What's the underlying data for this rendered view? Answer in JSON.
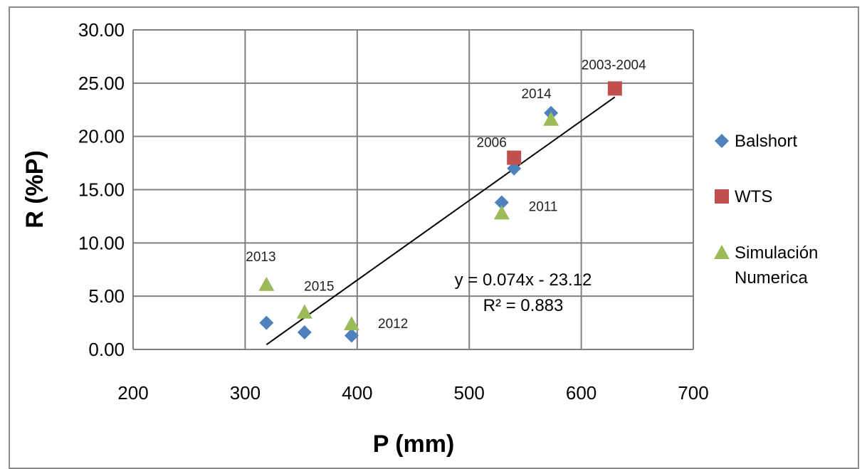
{
  "chart_data": {
    "type": "scatter",
    "xlabel": "P (mm)",
    "ylabel": "R (%P)",
    "xlim": [
      200,
      700
    ],
    "ylim": [
      0,
      30
    ],
    "x_ticks": [
      "200",
      "300",
      "400",
      "500",
      "600",
      "700"
    ],
    "y_ticks": [
      "0.00",
      "5.00",
      "10.00",
      "15.00",
      "20.00",
      "25.00",
      "30.00"
    ],
    "grid": true,
    "legend_position": "right",
    "series": [
      {
        "name": "Balshort",
        "marker": "diamond",
        "color": "#4f81bd",
        "points": [
          {
            "x": 319,
            "y": 2.5
          },
          {
            "x": 353,
            "y": 1.6
          },
          {
            "x": 395,
            "y": 1.3
          },
          {
            "x": 529,
            "y": 13.8
          },
          {
            "x": 540,
            "y": 17.0
          },
          {
            "x": 573,
            "y": 22.2
          }
        ]
      },
      {
        "name": "WTS",
        "marker": "square",
        "color": "#c0504d",
        "points": [
          {
            "x": 540,
            "y": 18.0
          },
          {
            "x": 630,
            "y": 24.5
          }
        ]
      },
      {
        "name": "Simulación Numerica",
        "legend_lines": [
          "Simulación",
          "Numerica"
        ],
        "marker": "triangle",
        "color": "#9bbb59",
        "points": [
          {
            "x": 319,
            "y": 6.1
          },
          {
            "x": 353,
            "y": 3.5
          },
          {
            "x": 395,
            "y": 2.4
          },
          {
            "x": 529,
            "y": 12.8
          },
          {
            "x": 573,
            "y": 21.6
          }
        ]
      }
    ],
    "trendline": {
      "x": [
        319,
        630
      ],
      "y": [
        0.45,
        23.7
      ],
      "color": "#000000",
      "equation": "y = 0.074x - 23.12",
      "r2": "R² = 0.883"
    },
    "annotations": [
      {
        "text": "2013",
        "x": 314,
        "y": 8.3
      },
      {
        "text": "2015",
        "x": 366,
        "y": 5.5
      },
      {
        "text": "2012",
        "x": 432,
        "y": 2.0
      },
      {
        "text": "2006",
        "x": 520,
        "y": 19.0
      },
      {
        "text": "2011",
        "x": 566,
        "y": 13.0
      },
      {
        "text": "2014",
        "x": 560,
        "y": 23.6
      },
      {
        "text": "2003-2004",
        "x": 629,
        "y": 26.3
      }
    ]
  }
}
